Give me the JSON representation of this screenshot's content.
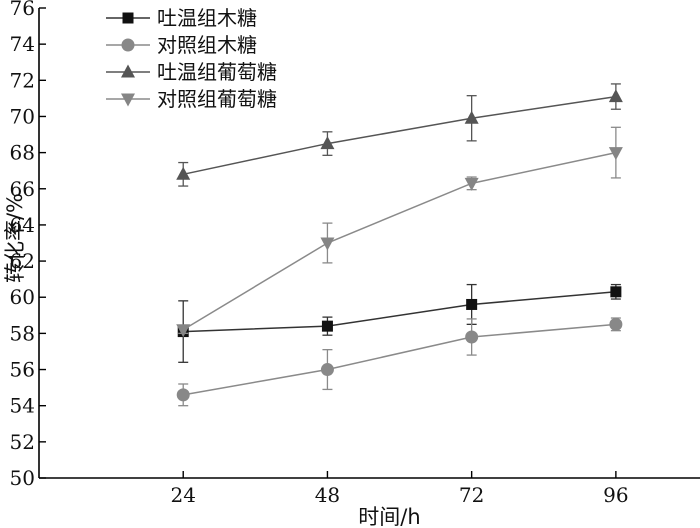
{
  "chart_data": {
    "type": "line",
    "title": "",
    "xlabel": "时间/h",
    "ylabel": "转化率/%",
    "x": [
      24,
      48,
      72,
      96
    ],
    "xlim": [
      0,
      110
    ],
    "ylim": [
      50,
      76
    ],
    "yticks": [
      50,
      52,
      54,
      56,
      58,
      60,
      62,
      64,
      66,
      68,
      70,
      72,
      74,
      76
    ],
    "grid": false,
    "legend_position": "top-left",
    "series": [
      {
        "name": "吐温组木糖",
        "marker": "square",
        "color": "#111111",
        "line_color": "#333333",
        "values": [
          58.1,
          58.4,
          59.6,
          60.3
        ],
        "errors": [
          1.7,
          0.5,
          1.1,
          0.4
        ]
      },
      {
        "name": "对照组木糖",
        "marker": "circle",
        "color": "#888888",
        "line_color": "#8a8a8a",
        "values": [
          54.6,
          56.0,
          57.8,
          58.5
        ],
        "errors": [
          0.6,
          1.1,
          1.0,
          0.35
        ]
      },
      {
        "name": "吐温组葡萄糖",
        "marker": "triangle-up",
        "color": "#555555",
        "line_color": "#555555",
        "values": [
          66.8,
          68.5,
          69.9,
          71.1
        ],
        "errors": [
          0.65,
          0.65,
          1.25,
          0.7
        ]
      },
      {
        "name": "对照组葡萄糖",
        "marker": "triangle-down",
        "color": "#858585",
        "line_color": "#8a8a8a",
        "values": [
          58.2,
          63.0,
          66.3,
          68.0
        ],
        "errors": [
          0.2,
          1.1,
          0.35,
          1.4
        ]
      }
    ]
  }
}
